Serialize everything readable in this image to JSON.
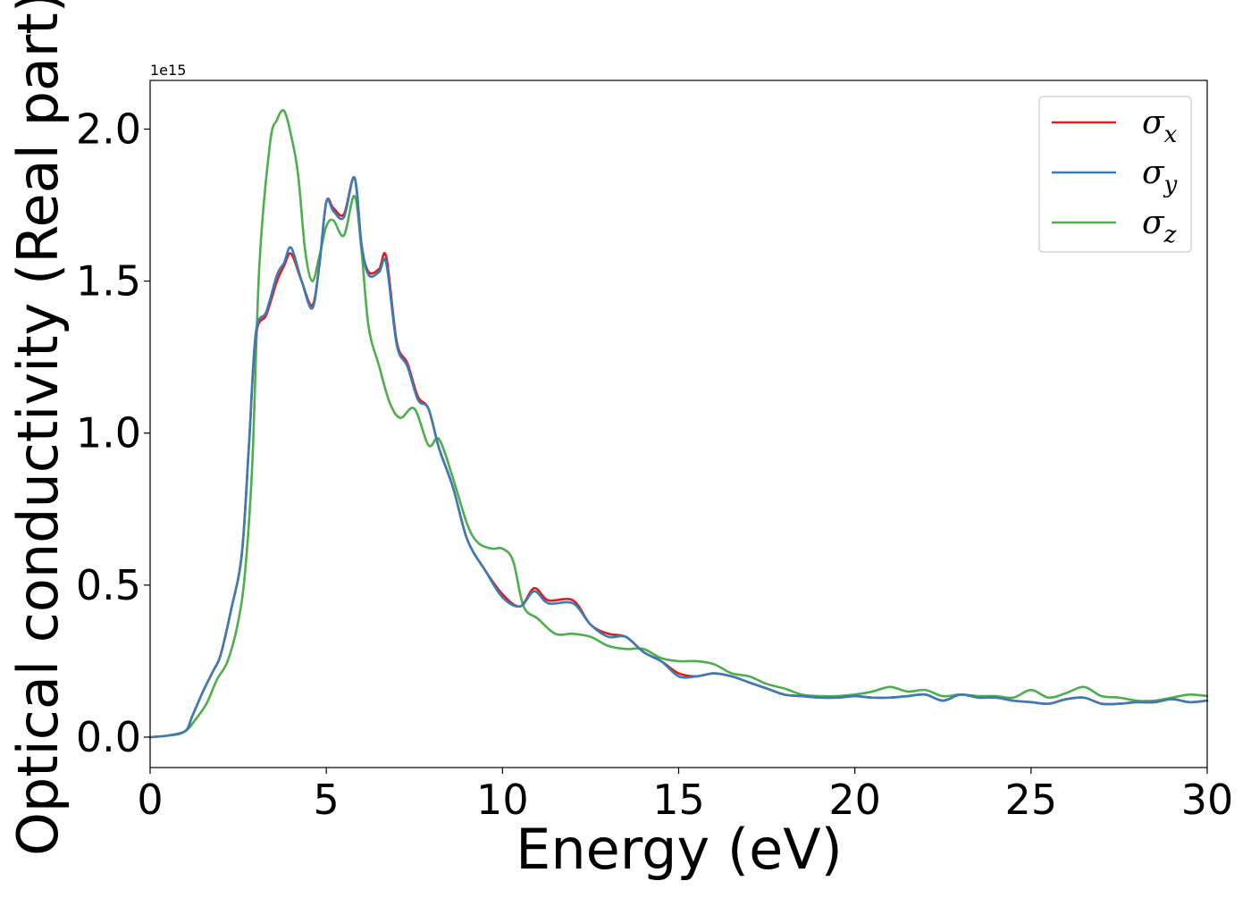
{
  "chart_data": {
    "type": "line",
    "title": "",
    "xlabel": "Energy (eV)",
    "ylabel": "Optical conductivity (Real part)",
    "offset_text": "1e15",
    "xlim": [
      0,
      30
    ],
    "ylim": [
      -0.1,
      2.16
    ],
    "xticks": [
      0,
      5,
      10,
      15,
      20,
      25,
      30
    ],
    "xtick_labels": [
      "0",
      "5",
      "10",
      "15",
      "20",
      "25",
      "30"
    ],
    "yticks": [
      0.0,
      0.5,
      1.0,
      1.5,
      2.0
    ],
    "ytick_labels": [
      "0.0",
      "0.5",
      "1.0",
      "1.5",
      "2.0"
    ],
    "grid": false,
    "legend": "top-right",
    "series": [
      {
        "name": "σx",
        "symbol": "σ",
        "sub": "x",
        "color": "#e41a1c",
        "x": [
          0,
          0.5,
          1,
          1.2,
          1.5,
          1.8,
          2,
          2.3,
          2.6,
          2.8,
          3,
          3.3,
          3.6,
          3.8,
          4,
          4.3,
          4.6,
          4.8,
          5,
          5.2,
          5.5,
          5.8,
          6,
          6.2,
          6.5,
          6.7,
          7,
          7.3,
          7.6,
          7.9,
          8.2,
          8.6,
          9,
          9.5,
          10,
          10.5,
          10.9,
          11.3,
          12,
          12.5,
          13,
          13.5,
          14,
          14.5,
          15,
          15.5,
          16,
          16.5,
          17,
          17.5,
          18,
          18.5,
          19,
          19.5,
          20,
          20.5,
          21,
          21.5,
          22,
          22.5,
          23,
          23.5,
          24,
          24.5,
          25,
          25.5,
          26,
          26.5,
          27,
          27.5,
          28,
          28.5,
          29,
          29.5,
          30
        ],
        "y": [
          0,
          0.005,
          0.02,
          0.07,
          0.15,
          0.22,
          0.27,
          0.42,
          0.6,
          0.95,
          1.32,
          1.39,
          1.5,
          1.55,
          1.59,
          1.5,
          1.42,
          1.55,
          1.76,
          1.74,
          1.72,
          1.84,
          1.62,
          1.53,
          1.54,
          1.58,
          1.3,
          1.23,
          1.12,
          1.08,
          0.95,
          0.82,
          0.65,
          0.55,
          0.47,
          0.43,
          0.49,
          0.45,
          0.45,
          0.37,
          0.34,
          0.33,
          0.28,
          0.25,
          0.21,
          0.2,
          0.21,
          0.2,
          0.18,
          0.16,
          0.14,
          0.135,
          0.13,
          0.13,
          0.135,
          0.13,
          0.13,
          0.135,
          0.14,
          0.12,
          0.14,
          0.13,
          0.13,
          0.12,
          0.115,
          0.11,
          0.125,
          0.13,
          0.11,
          0.11,
          0.115,
          0.115,
          0.125,
          0.115,
          0.12
        ]
      },
      {
        "name": "σy",
        "symbol": "σ",
        "sub": "y",
        "color": "#377eb8",
        "x": [
          0,
          0.5,
          1,
          1.2,
          1.5,
          1.8,
          2,
          2.3,
          2.6,
          2.8,
          3,
          3.3,
          3.6,
          3.8,
          4,
          4.3,
          4.6,
          4.8,
          5,
          5.2,
          5.5,
          5.8,
          6,
          6.2,
          6.5,
          6.7,
          7,
          7.3,
          7.6,
          7.9,
          8.2,
          8.6,
          9,
          9.5,
          10,
          10.5,
          10.9,
          11.3,
          12,
          12.5,
          13,
          13.5,
          14,
          14.5,
          15,
          15.5,
          16,
          16.5,
          17,
          17.5,
          18,
          18.5,
          19,
          19.5,
          20,
          20.5,
          21,
          21.5,
          22,
          22.5,
          23,
          23.5,
          24,
          24.5,
          25,
          25.5,
          26,
          26.5,
          27,
          27.5,
          28,
          28.5,
          29,
          29.5,
          30
        ],
        "y": [
          0,
          0.005,
          0.02,
          0.07,
          0.15,
          0.22,
          0.27,
          0.42,
          0.6,
          0.95,
          1.33,
          1.4,
          1.52,
          1.56,
          1.61,
          1.5,
          1.41,
          1.55,
          1.76,
          1.73,
          1.71,
          1.84,
          1.62,
          1.52,
          1.53,
          1.56,
          1.29,
          1.22,
          1.11,
          1.08,
          0.95,
          0.82,
          0.65,
          0.55,
          0.46,
          0.43,
          0.48,
          0.44,
          0.44,
          0.37,
          0.33,
          0.33,
          0.28,
          0.25,
          0.2,
          0.2,
          0.21,
          0.2,
          0.18,
          0.16,
          0.14,
          0.135,
          0.13,
          0.13,
          0.135,
          0.13,
          0.13,
          0.135,
          0.14,
          0.12,
          0.14,
          0.13,
          0.13,
          0.12,
          0.115,
          0.11,
          0.125,
          0.13,
          0.11,
          0.11,
          0.115,
          0.115,
          0.125,
          0.115,
          0.12
        ]
      },
      {
        "name": "σz",
        "symbol": "σ",
        "sub": "z",
        "color": "#4daf4a",
        "x": [
          0,
          0.5,
          1,
          1.3,
          1.6,
          1.9,
          2.2,
          2.5,
          2.7,
          2.9,
          3.1,
          3.4,
          3.6,
          3.8,
          4,
          4.2,
          4.4,
          4.6,
          4.8,
          5,
          5.2,
          5.5,
          5.8,
          6,
          6.2,
          6.5,
          6.8,
          7.1,
          7.5,
          7.9,
          8.2,
          8.6,
          9,
          9.3,
          9.7,
          10,
          10.3,
          10.6,
          11,
          11.5,
          12,
          12.5,
          13,
          13.5,
          14,
          14.5,
          15,
          15.5,
          16,
          16.5,
          17,
          17.5,
          18,
          18.5,
          19,
          19.5,
          20,
          20.5,
          21,
          21.5,
          22,
          22.5,
          23,
          23.5,
          24,
          24.5,
          25,
          25.5,
          26,
          26.5,
          27,
          27.5,
          28,
          28.5,
          29,
          29.5,
          30
        ],
        "y": [
          0,
          0.005,
          0.02,
          0.06,
          0.11,
          0.19,
          0.25,
          0.38,
          0.55,
          0.9,
          1.55,
          1.95,
          2.03,
          2.06,
          1.98,
          1.85,
          1.6,
          1.5,
          1.58,
          1.68,
          1.7,
          1.65,
          1.78,
          1.6,
          1.35,
          1.22,
          1.1,
          1.05,
          1.08,
          0.96,
          0.98,
          0.85,
          0.7,
          0.64,
          0.62,
          0.62,
          0.58,
          0.43,
          0.39,
          0.34,
          0.34,
          0.33,
          0.3,
          0.29,
          0.29,
          0.26,
          0.25,
          0.25,
          0.24,
          0.21,
          0.2,
          0.175,
          0.16,
          0.14,
          0.135,
          0.135,
          0.14,
          0.15,
          0.165,
          0.15,
          0.155,
          0.135,
          0.14,
          0.135,
          0.135,
          0.13,
          0.155,
          0.13,
          0.145,
          0.165,
          0.135,
          0.13,
          0.12,
          0.12,
          0.13,
          0.14,
          0.135
        ]
      }
    ]
  }
}
